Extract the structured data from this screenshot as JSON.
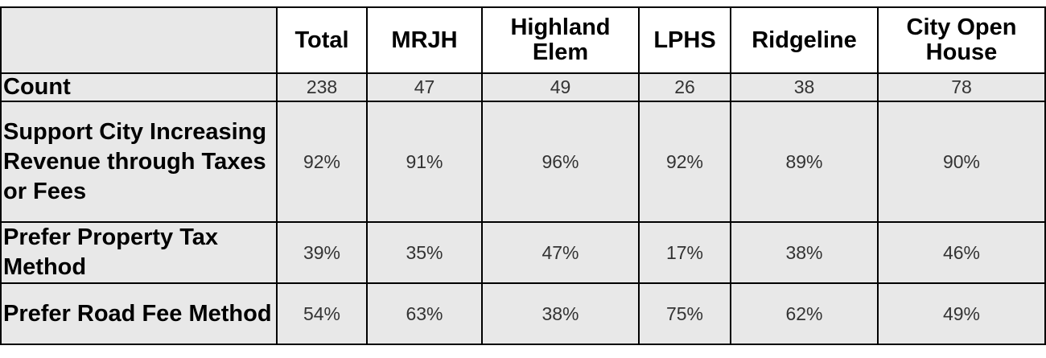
{
  "chart_data": {
    "type": "table",
    "columns": [
      "",
      "Total",
      "MRJH",
      "Highland Elem",
      "LPHS",
      "Ridgeline",
      "City Open House"
    ],
    "rows": [
      {
        "label": "Count",
        "values": [
          "238",
          "47",
          "49",
          "26",
          "38",
          "78"
        ]
      },
      {
        "label": "Support City Increasing Revenue through Taxes or Fees",
        "values": [
          "92%",
          "91%",
          "96%",
          "92%",
          "89%",
          "90%"
        ]
      },
      {
        "label": "Prefer Property Tax Method",
        "values": [
          "39%",
          "35%",
          "47%",
          "17%",
          "38%",
          "46%"
        ]
      },
      {
        "label": "Prefer Road Fee Method",
        "values": [
          "54%",
          "63%",
          "38%",
          "75%",
          "62%",
          "49%"
        ]
      }
    ]
  },
  "colors": {
    "cell_background": "#e8e8e8",
    "header_background": "#ffffff",
    "border": "#000000"
  }
}
